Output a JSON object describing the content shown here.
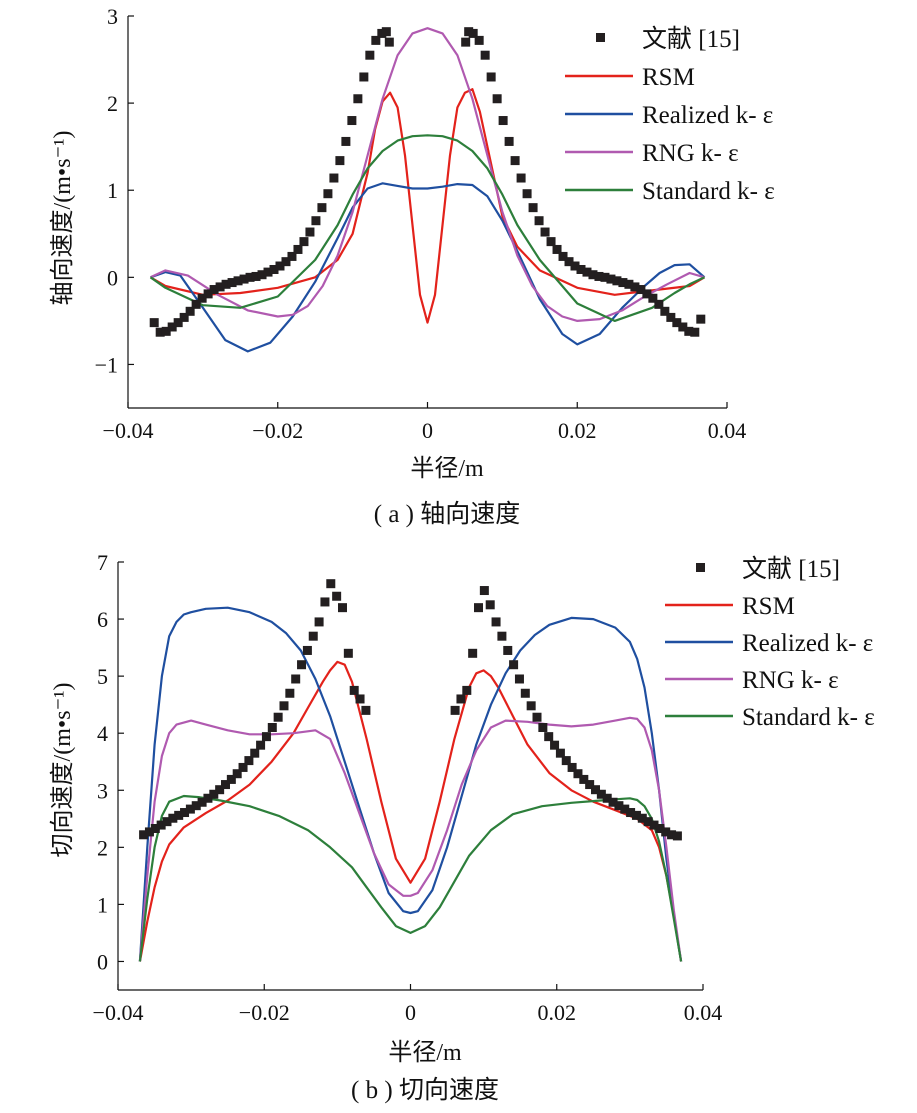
{
  "chart_data": [
    {
      "type": "line",
      "caption": "( a ) 轴向速度",
      "xlabel": "半径/m",
      "ylabel": "轴向速度/(m•s⁻¹)",
      "xlim": [
        -0.04,
        0.04
      ],
      "ylim": [
        -1.5,
        3
      ],
      "xticks": [
        -0.04,
        -0.02,
        0,
        0.02,
        0.04
      ],
      "xtick_labels": [
        "−0.04",
        "−0.02",
        "0",
        "0.02",
        "0.04"
      ],
      "yticks": [
        -1,
        0,
        1,
        2,
        3
      ],
      "ytick_labels": [
        "−1",
        "0",
        "1",
        "2",
        "3"
      ],
      "grid": false,
      "legend_position": "top-right",
      "series": [
        {
          "name": "文献 [15]",
          "kind": "markers",
          "color": "#231f20",
          "x": [
            -0.0365,
            -0.0357,
            -0.0349,
            -0.0341,
            -0.0333,
            -0.0325,
            -0.0317,
            -0.0309,
            -0.0301,
            -0.0293,
            -0.0285,
            -0.0277,
            -0.0269,
            -0.0261,
            -0.0253,
            -0.0245,
            -0.0237,
            -0.0229,
            -0.0221,
            -0.0213,
            -0.0205,
            -0.0197,
            -0.0189,
            -0.0181,
            -0.0173,
            -0.0165,
            -0.0157,
            -0.0149,
            -0.0141,
            -0.0133,
            -0.0125,
            -0.0117,
            -0.0109,
            -0.0101,
            -0.0093,
            -0.0085,
            -0.0077,
            -0.0069,
            -0.0061,
            -0.0055,
            -0.0051,
            0.0051,
            0.0055,
            0.0061,
            0.0069,
            0.0077,
            0.0085,
            0.0093,
            0.0101,
            0.0109,
            0.0117,
            0.0125,
            0.0133,
            0.0141,
            0.0149,
            0.0157,
            0.0165,
            0.0173,
            0.0181,
            0.0189,
            0.0197,
            0.0205,
            0.0213,
            0.0221,
            0.0229,
            0.0237,
            0.0245,
            0.0253,
            0.0261,
            0.0269,
            0.0277,
            0.0285,
            0.0293,
            0.0301,
            0.0309,
            0.0317,
            0.0325,
            0.0333,
            0.0341,
            0.0349,
            0.0357,
            0.0365
          ],
          "y": [
            -0.52,
            -0.63,
            -0.62,
            -0.57,
            -0.52,
            -0.46,
            -0.39,
            -0.31,
            -0.24,
            -0.19,
            -0.14,
            -0.11,
            -0.08,
            -0.06,
            -0.04,
            -0.02,
            0.0,
            0.01,
            0.03,
            0.06,
            0.09,
            0.13,
            0.18,
            0.24,
            0.32,
            0.41,
            0.52,
            0.65,
            0.8,
            0.96,
            1.14,
            1.34,
            1.56,
            1.8,
            2.05,
            2.3,
            2.55,
            2.72,
            2.8,
            2.82,
            2.7,
            2.7,
            2.82,
            2.8,
            2.72,
            2.55,
            2.3,
            2.05,
            1.8,
            1.56,
            1.34,
            1.14,
            0.96,
            0.8,
            0.65,
            0.52,
            0.41,
            0.32,
            0.24,
            0.18,
            0.13,
            0.09,
            0.06,
            0.03,
            0.01,
            0.0,
            -0.02,
            -0.04,
            -0.06,
            -0.08,
            -0.11,
            -0.14,
            -0.19,
            -0.24,
            -0.31,
            -0.39,
            -0.46,
            -0.52,
            -0.57,
            -0.62,
            -0.63,
            -0.48
          ]
        },
        {
          "name": "RSM",
          "kind": "line",
          "color": "#e3221b",
          "x": [
            -0.037,
            -0.035,
            -0.03,
            -0.025,
            -0.02,
            -0.015,
            -0.012,
            -0.01,
            -0.008,
            -0.007,
            -0.006,
            -0.005,
            -0.004,
            -0.003,
            -0.002,
            -0.001,
            0,
            0.001,
            0.002,
            0.003,
            0.004,
            0.005,
            0.006,
            0.007,
            0.008,
            0.01,
            0.012,
            0.015,
            0.02,
            0.025,
            0.03,
            0.035,
            0.037
          ],
          "y": [
            0,
            -0.1,
            -0.2,
            -0.18,
            -0.12,
            0.0,
            0.2,
            0.5,
            1.2,
            1.7,
            2.02,
            2.12,
            1.95,
            1.4,
            0.6,
            -0.2,
            -0.52,
            -0.2,
            0.6,
            1.4,
            1.95,
            2.12,
            2.16,
            1.9,
            1.5,
            0.7,
            0.35,
            0.08,
            -0.12,
            -0.2,
            -0.15,
            -0.1,
            0
          ]
        },
        {
          "name": "Realized k- ε",
          "kind": "line",
          "color": "#1f4fa0",
          "x": [
            -0.037,
            -0.035,
            -0.033,
            -0.03,
            -0.027,
            -0.024,
            -0.021,
            -0.018,
            -0.015,
            -0.012,
            -0.01,
            -0.008,
            -0.006,
            -0.004,
            -0.002,
            0,
            0.002,
            0.004,
            0.006,
            0.008,
            0.01,
            0.012,
            0.015,
            0.018,
            0.02,
            0.023,
            0.026,
            0.029,
            0.031,
            0.033,
            0.035,
            0.037
          ],
          "y": [
            0,
            0.06,
            0.02,
            -0.35,
            -0.72,
            -0.85,
            -0.75,
            -0.45,
            -0.05,
            0.45,
            0.8,
            1.02,
            1.08,
            1.05,
            1.02,
            1.02,
            1.04,
            1.07,
            1.06,
            0.93,
            0.65,
            0.3,
            -0.25,
            -0.65,
            -0.77,
            -0.65,
            -0.35,
            -0.1,
            0.05,
            0.14,
            0.15,
            0
          ]
        },
        {
          "name": "RNG k- ε",
          "kind": "line",
          "color": "#b05ab0",
          "x": [
            -0.037,
            -0.035,
            -0.032,
            -0.028,
            -0.024,
            -0.02,
            -0.018,
            -0.016,
            -0.014,
            -0.012,
            -0.01,
            -0.008,
            -0.006,
            -0.004,
            -0.002,
            0,
            0.002,
            0.004,
            0.006,
            0.008,
            0.01,
            0.012,
            0.014,
            0.016,
            0.018,
            0.02,
            0.023,
            0.026,
            0.029,
            0.032,
            0.035,
            0.037
          ],
          "y": [
            0,
            0.08,
            0.02,
            -0.2,
            -0.38,
            -0.45,
            -0.43,
            -0.33,
            -0.1,
            0.25,
            0.75,
            1.4,
            2.05,
            2.55,
            2.8,
            2.86,
            2.8,
            2.55,
            2.05,
            1.4,
            0.75,
            0.25,
            -0.1,
            -0.33,
            -0.45,
            -0.5,
            -0.48,
            -0.38,
            -0.22,
            -0.08,
            0.05,
            0
          ]
        },
        {
          "name": "Standard k- ε",
          "kind": "line",
          "color": "#2d7f3b",
          "x": [
            -0.037,
            -0.035,
            -0.03,
            -0.025,
            -0.02,
            -0.015,
            -0.012,
            -0.01,
            -0.008,
            -0.006,
            -0.004,
            -0.002,
            0,
            0.002,
            0.004,
            0.006,
            0.008,
            0.01,
            0.012,
            0.015,
            0.02,
            0.025,
            0.03,
            0.033,
            0.035,
            0.037
          ],
          "y": [
            0,
            -0.12,
            -0.32,
            -0.35,
            -0.22,
            0.2,
            0.6,
            0.95,
            1.25,
            1.45,
            1.57,
            1.62,
            1.63,
            1.62,
            1.57,
            1.45,
            1.25,
            0.95,
            0.6,
            0.2,
            -0.3,
            -0.5,
            -0.35,
            -0.18,
            -0.08,
            0
          ]
        }
      ]
    },
    {
      "type": "line",
      "caption": "( b ) 切向速度",
      "xlabel": "半径/m",
      "ylabel": "切向速度/(m•s⁻¹)",
      "xlim": [
        -0.04,
        0.04
      ],
      "ylim": [
        -0.5,
        7
      ],
      "xticks": [
        -0.04,
        -0.02,
        0,
        0.02,
        0.04
      ],
      "xtick_labels": [
        "−0.04",
        "−0.02",
        "0",
        "0.02",
        "0.04"
      ],
      "yticks": [
        0,
        1,
        2,
        3,
        4,
        5,
        6,
        7
      ],
      "ytick_labels": [
        "0",
        "1",
        "2",
        "3",
        "4",
        "5",
        "6",
        "7"
      ],
      "grid": false,
      "legend_position": "top-right",
      "series": [
        {
          "name": "文献 [15]",
          "kind": "markers",
          "color": "#231f20",
          "x": [
            -0.0365,
            -0.0357,
            -0.0349,
            -0.0341,
            -0.0333,
            -0.0325,
            -0.0317,
            -0.0309,
            -0.0301,
            -0.0293,
            -0.0285,
            -0.0277,
            -0.0269,
            -0.0261,
            -0.0253,
            -0.0245,
            -0.0237,
            -0.0229,
            -0.0221,
            -0.0213,
            -0.0205,
            -0.0197,
            -0.0189,
            -0.0181,
            -0.0173,
            -0.0165,
            -0.0157,
            -0.0149,
            -0.0141,
            -0.0133,
            -0.0125,
            -0.0117,
            -0.0109,
            -0.0101,
            -0.0093,
            -0.0085,
            -0.0077,
            -0.0069,
            -0.0061,
            0.0061,
            0.0069,
            0.0077,
            0.0085,
            0.0093,
            0.0101,
            0.0109,
            0.0117,
            0.0125,
            0.0133,
            0.0141,
            0.0149,
            0.0157,
            0.0165,
            0.0173,
            0.0181,
            0.0189,
            0.0197,
            0.0205,
            0.0213,
            0.0221,
            0.0229,
            0.0237,
            0.0245,
            0.0253,
            0.0261,
            0.0269,
            0.0277,
            0.0285,
            0.0293,
            0.0301,
            0.0309,
            0.0317,
            0.0325,
            0.0333,
            0.0341,
            0.0349,
            0.0357,
            0.0365
          ],
          "y": [
            2.22,
            2.27,
            2.33,
            2.39,
            2.45,
            2.51,
            2.56,
            2.61,
            2.67,
            2.73,
            2.79,
            2.86,
            2.93,
            3.01,
            3.1,
            3.19,
            3.29,
            3.4,
            3.52,
            3.65,
            3.79,
            3.94,
            4.1,
            4.28,
            4.48,
            4.7,
            4.95,
            5.2,
            5.45,
            5.7,
            5.95,
            6.3,
            6.62,
            6.4,
            6.2,
            5.4,
            4.75,
            4.6,
            4.4,
            4.4,
            4.6,
            4.75,
            5.4,
            6.2,
            6.5,
            6.25,
            5.95,
            5.7,
            5.45,
            5.2,
            4.95,
            4.7,
            4.48,
            4.28,
            4.1,
            3.94,
            3.79,
            3.65,
            3.52,
            3.4,
            3.29,
            3.19,
            3.1,
            3.01,
            2.93,
            2.86,
            2.79,
            2.73,
            2.67,
            2.61,
            2.56,
            2.51,
            2.45,
            2.39,
            2.33,
            2.27,
            2.22,
            2.2
          ]
        },
        {
          "name": "RSM",
          "kind": "line",
          "color": "#e3221b",
          "x": [
            -0.037,
            -0.036,
            -0.035,
            -0.034,
            -0.033,
            -0.031,
            -0.028,
            -0.025,
            -0.022,
            -0.019,
            -0.016,
            -0.014,
            -0.012,
            -0.011,
            -0.01,
            -0.009,
            -0.008,
            -0.006,
            -0.004,
            -0.002,
            0,
            0.002,
            0.004,
            0.006,
            0.008,
            0.009,
            0.01,
            0.011,
            0.012,
            0.014,
            0.016,
            0.019,
            0.022,
            0.025,
            0.028,
            0.031,
            0.033,
            0.034,
            0.035,
            0.036,
            0.037
          ],
          "y": [
            0,
            0.7,
            1.3,
            1.75,
            2.05,
            2.35,
            2.6,
            2.82,
            3.1,
            3.5,
            4.0,
            4.45,
            4.9,
            5.1,
            5.25,
            5.2,
            4.9,
            3.9,
            2.8,
            1.8,
            1.38,
            1.8,
            2.8,
            3.9,
            4.8,
            5.05,
            5.1,
            5.0,
            4.8,
            4.3,
            3.8,
            3.3,
            3.0,
            2.8,
            2.65,
            2.5,
            2.3,
            2.0,
            1.5,
            0.8,
            0
          ]
        },
        {
          "name": "Realized k- ε",
          "kind": "line",
          "color": "#1f4fa0",
          "x": [
            -0.037,
            -0.036,
            -0.035,
            -0.034,
            -0.033,
            -0.032,
            -0.031,
            -0.03,
            -0.028,
            -0.025,
            -0.022,
            -0.019,
            -0.017,
            -0.015,
            -0.013,
            -0.011,
            -0.009,
            -0.007,
            -0.005,
            -0.003,
            -0.001,
            0,
            0.001,
            0.003,
            0.005,
            0.007,
            0.009,
            0.011,
            0.013,
            0.015,
            0.017,
            0.019,
            0.022,
            0.025,
            0.028,
            0.03,
            0.031,
            0.032,
            0.033,
            0.034,
            0.035,
            0.036,
            0.037
          ],
          "y": [
            0,
            2.0,
            3.8,
            5.0,
            5.7,
            5.95,
            6.08,
            6.12,
            6.18,
            6.2,
            6.12,
            5.95,
            5.75,
            5.45,
            4.95,
            4.3,
            3.5,
            2.7,
            1.9,
            1.2,
            0.88,
            0.85,
            0.88,
            1.25,
            2.0,
            2.9,
            3.8,
            4.5,
            5.05,
            5.45,
            5.72,
            5.9,
            6.02,
            6.0,
            5.85,
            5.6,
            5.3,
            4.8,
            4.0,
            3.0,
            1.8,
            0.8,
            0
          ]
        },
        {
          "name": "RNG k- ε",
          "kind": "line",
          "color": "#b05ab0",
          "x": [
            -0.037,
            -0.036,
            -0.035,
            -0.034,
            -0.033,
            -0.032,
            -0.03,
            -0.028,
            -0.025,
            -0.022,
            -0.019,
            -0.016,
            -0.013,
            -0.011,
            -0.009,
            -0.007,
            -0.005,
            -0.003,
            -0.001,
            0,
            0.001,
            0.003,
            0.005,
            0.007,
            0.009,
            0.011,
            0.013,
            0.016,
            0.019,
            0.022,
            0.025,
            0.028,
            0.03,
            0.031,
            0.032,
            0.033,
            0.034,
            0.035,
            0.036,
            0.037
          ],
          "y": [
            0,
            1.5,
            2.8,
            3.6,
            4.0,
            4.15,
            4.22,
            4.15,
            4.05,
            3.98,
            3.98,
            4.0,
            4.05,
            3.9,
            3.3,
            2.6,
            1.9,
            1.35,
            1.15,
            1.15,
            1.2,
            1.6,
            2.3,
            3.1,
            3.7,
            4.1,
            4.22,
            4.2,
            4.15,
            4.12,
            4.15,
            4.22,
            4.27,
            4.25,
            4.1,
            3.7,
            3.0,
            2.0,
            0.9,
            0
          ]
        },
        {
          "name": "Standard k- ε",
          "kind": "line",
          "color": "#2d7f3b",
          "x": [
            -0.037,
            -0.036,
            -0.035,
            -0.034,
            -0.033,
            -0.031,
            -0.029,
            -0.026,
            -0.022,
            -0.018,
            -0.014,
            -0.011,
            -0.008,
            -0.006,
            -0.004,
            -0.002,
            0,
            0.002,
            0.004,
            0.006,
            0.008,
            0.011,
            0.014,
            0.018,
            0.022,
            0.026,
            0.029,
            0.03,
            0.031,
            0.032,
            0.033,
            0.034,
            0.035,
            0.036,
            0.037
          ],
          "y": [
            0,
            1.1,
            2.0,
            2.55,
            2.8,
            2.9,
            2.88,
            2.82,
            2.72,
            2.55,
            2.3,
            2.0,
            1.65,
            1.3,
            0.95,
            0.62,
            0.5,
            0.62,
            0.95,
            1.4,
            1.85,
            2.3,
            2.58,
            2.72,
            2.78,
            2.82,
            2.85,
            2.86,
            2.83,
            2.72,
            2.5,
            2.1,
            1.5,
            0.75,
            0
          ]
        }
      ]
    }
  ]
}
